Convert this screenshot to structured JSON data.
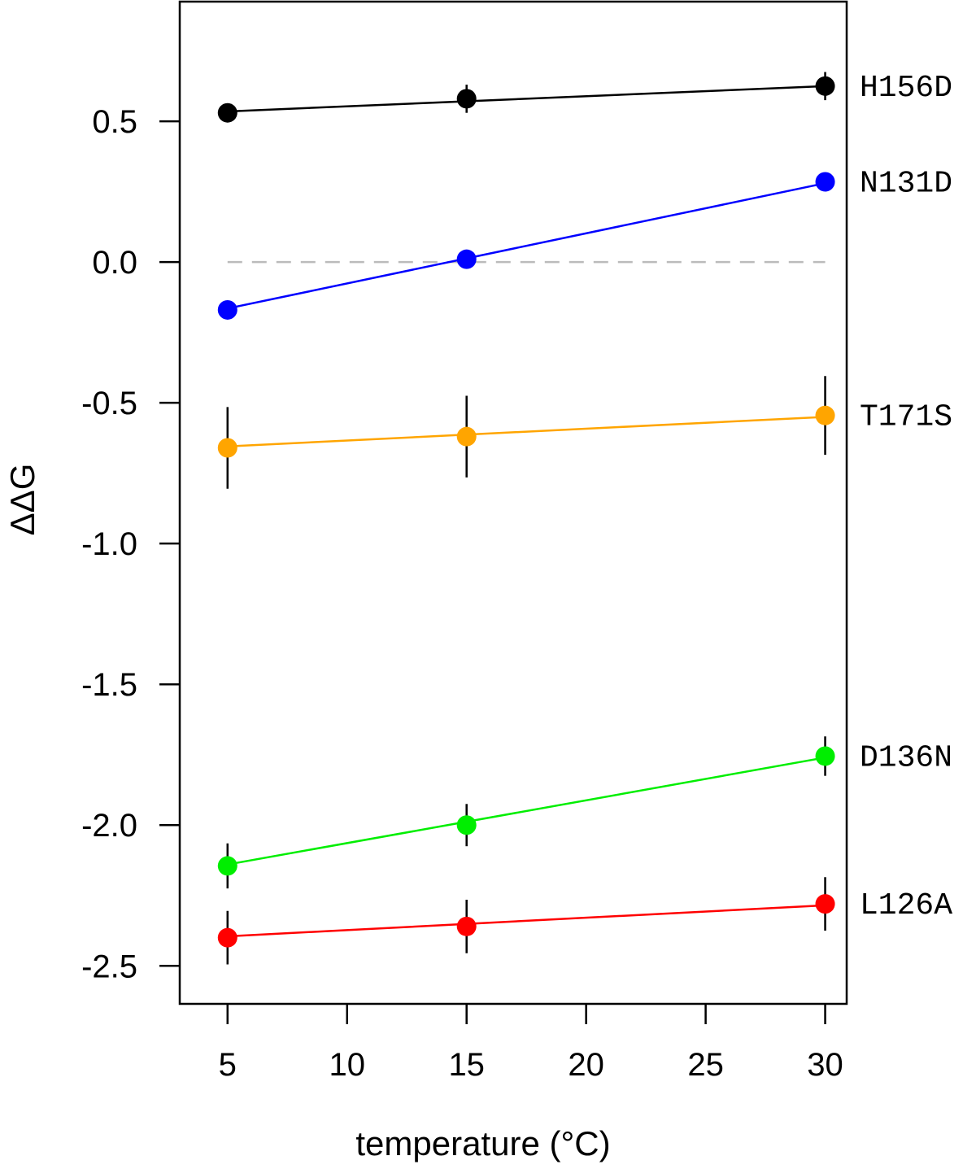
{
  "chart_data": {
    "type": "scatter",
    "title": "",
    "xlabel": "temperature (°C)",
    "ylabel": "ΔΔG",
    "xlim": [
      3,
      30.9
    ],
    "ylim": [
      -2.635,
      0.925
    ],
    "xticks": [
      5,
      10,
      15,
      20,
      25,
      30
    ],
    "xtick_labels": [
      "5",
      "10",
      "15",
      "20",
      "25",
      "30"
    ],
    "yticks": [
      0.5,
      0.0,
      -0.5,
      -1.0,
      -1.5,
      -2.0,
      -2.5
    ],
    "ytick_labels": [
      "0.5",
      "0.0",
      "-0.5",
      "-1.0",
      "-1.5",
      "-2.0",
      "-2.5"
    ],
    "x": [
      5,
      15,
      30
    ],
    "reference_line": {
      "y": 0.0,
      "style": "dashed",
      "color": "#bbbbbb"
    },
    "grid": false,
    "series": [
      {
        "name": "H156D",
        "color": "#000000",
        "values": [
          0.53,
          0.58,
          0.625
        ],
        "errors": [
          0.03,
          0.05,
          0.05
        ],
        "fit": [
          0.535,
          0.625
        ]
      },
      {
        "name": "N131D",
        "color": "#0000ff",
        "values": [
          -0.17,
          0.01,
          0.285
        ],
        "errors": [
          0.03,
          0.02,
          0.03
        ],
        "fit": [
          -0.165,
          0.28
        ]
      },
      {
        "name": "T171S",
        "color": "#ffa500",
        "values": [
          -0.66,
          -0.62,
          -0.545
        ],
        "errors": [
          0.145,
          0.145,
          0.14
        ],
        "fit": [
          -0.655,
          -0.55
        ]
      },
      {
        "name": "D136N",
        "color": "#00ee00",
        "values": [
          -2.145,
          -2.0,
          -1.755
        ],
        "errors": [
          0.08,
          0.075,
          0.07
        ],
        "fit": [
          -2.14,
          -1.76
        ]
      },
      {
        "name": "L126A",
        "color": "#ff0000",
        "values": [
          -2.4,
          -2.36,
          -2.28
        ],
        "errors": [
          0.095,
          0.095,
          0.095
        ],
        "fit": [
          -2.395,
          -2.285
        ]
      }
    ]
  }
}
